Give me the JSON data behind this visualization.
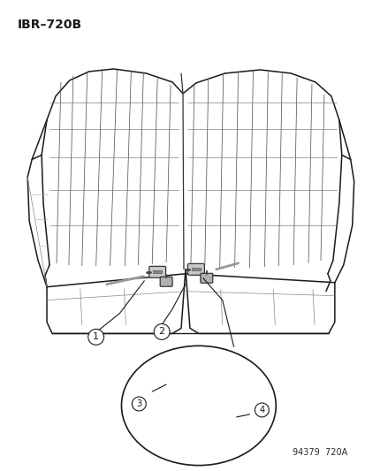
{
  "bg_color": "#ffffff",
  "line_color": "#1a1a1a",
  "title_text": "IBR–720B",
  "footer_text": "94379  720A",
  "title_fontsize": 10,
  "footer_fontsize": 7
}
